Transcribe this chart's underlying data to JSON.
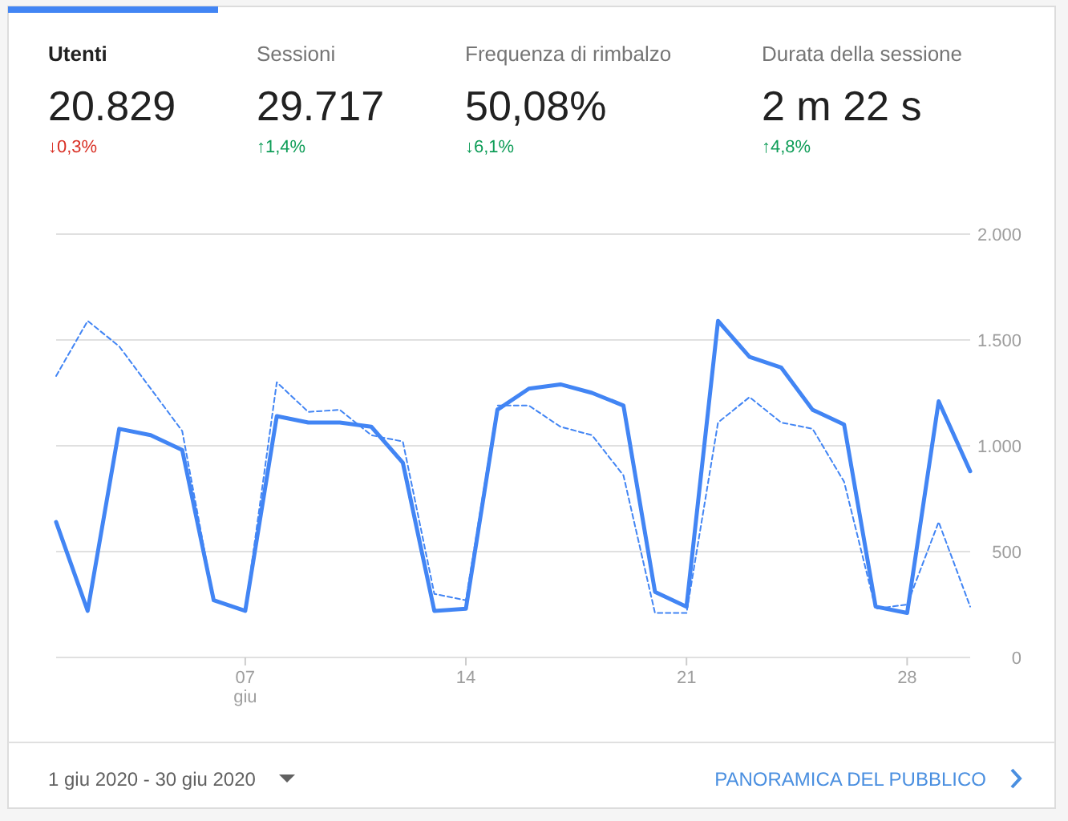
{
  "chart_data": [
    {
      "type": "other",
      "annotations": [
        "Utenti",
        "20.829",
        "↓0,3%",
        "Sessioni",
        "29.717",
        "↑1,4%",
        "Frequenza di rimbalzo",
        "50,08%",
        "↓6,1%",
        "Durata della sessione",
        "2 m 22 s",
        "↑4,8%"
      ],
      "colors": [
        "#d93025",
        "#0f9d58",
        "#0f9d58",
        "#0f9d58"
      ]
    },
    {
      "type": "line",
      "x": [
        "2020-06-01",
        "2020-06-02",
        "2020-06-03",
        "2020-06-04",
        "2020-06-05",
        "2020-06-06",
        "2020-06-07",
        "2020-06-08",
        "2020-06-09",
        "2020-06-10",
        "2020-06-11",
        "2020-06-12",
        "2020-06-13",
        "2020-06-14",
        "2020-06-15",
        "2020-06-16",
        "2020-06-17",
        "2020-06-18",
        "2020-06-19",
        "2020-06-20",
        "2020-06-21",
        "2020-06-22",
        "2020-06-23",
        "2020-06-24",
        "2020-06-25",
        "2020-06-26",
        "2020-06-27",
        "2020-06-28",
        "2020-06-29",
        "2020-06-30"
      ],
      "series": [
        {
          "color": "#4285f4",
          "line_style": "solid",
          "values": [
            640,
            220,
            1080,
            1050,
            980,
            270,
            220,
            1140,
            1110,
            1110,
            1090,
            920,
            220,
            230,
            1170,
            1270,
            1290,
            1250,
            1190,
            310,
            240,
            1590,
            1420,
            1370,
            1170,
            1100,
            240,
            210,
            1210,
            880
          ]
        },
        {
          "color": "#4285f4",
          "line_style": "dashed",
          "values": [
            1330,
            1590,
            1470,
            1270,
            1070,
            270,
            220,
            1300,
            1160,
            1170,
            1050,
            1020,
            300,
            270,
            1190,
            1190,
            1090,
            1050,
            860,
            210,
            210,
            1110,
            1230,
            1110,
            1080,
            830,
            230,
            250,
            640,
            240
          ]
        }
      ],
      "xlim": [
        "2020-06-01",
        "2020-06-30"
      ],
      "xticks": [
        {
          "value": "2020-06-07",
          "label": "07\ngiu"
        },
        {
          "value": "2020-06-14",
          "label": "14"
        },
        {
          "value": "2020-06-21",
          "label": "21"
        },
        {
          "value": "2020-06-28",
          "label": "28"
        }
      ],
      "ylim": [
        0,
        2000
      ],
      "yticks": [
        {
          "value": 0,
          "label": "0"
        },
        {
          "value": 500,
          "label": "500"
        },
        {
          "value": 1000,
          "label": "1.000"
        },
        {
          "value": 1500,
          "label": "1.500"
        },
        {
          "value": 2000,
          "label": "2.000"
        }
      ],
      "grid": "y",
      "annotations": [
        "1 giu 2020 - 30 giu 2020",
        "PANORAMICA DEL PUBBLICO"
      ]
    }
  ]
}
